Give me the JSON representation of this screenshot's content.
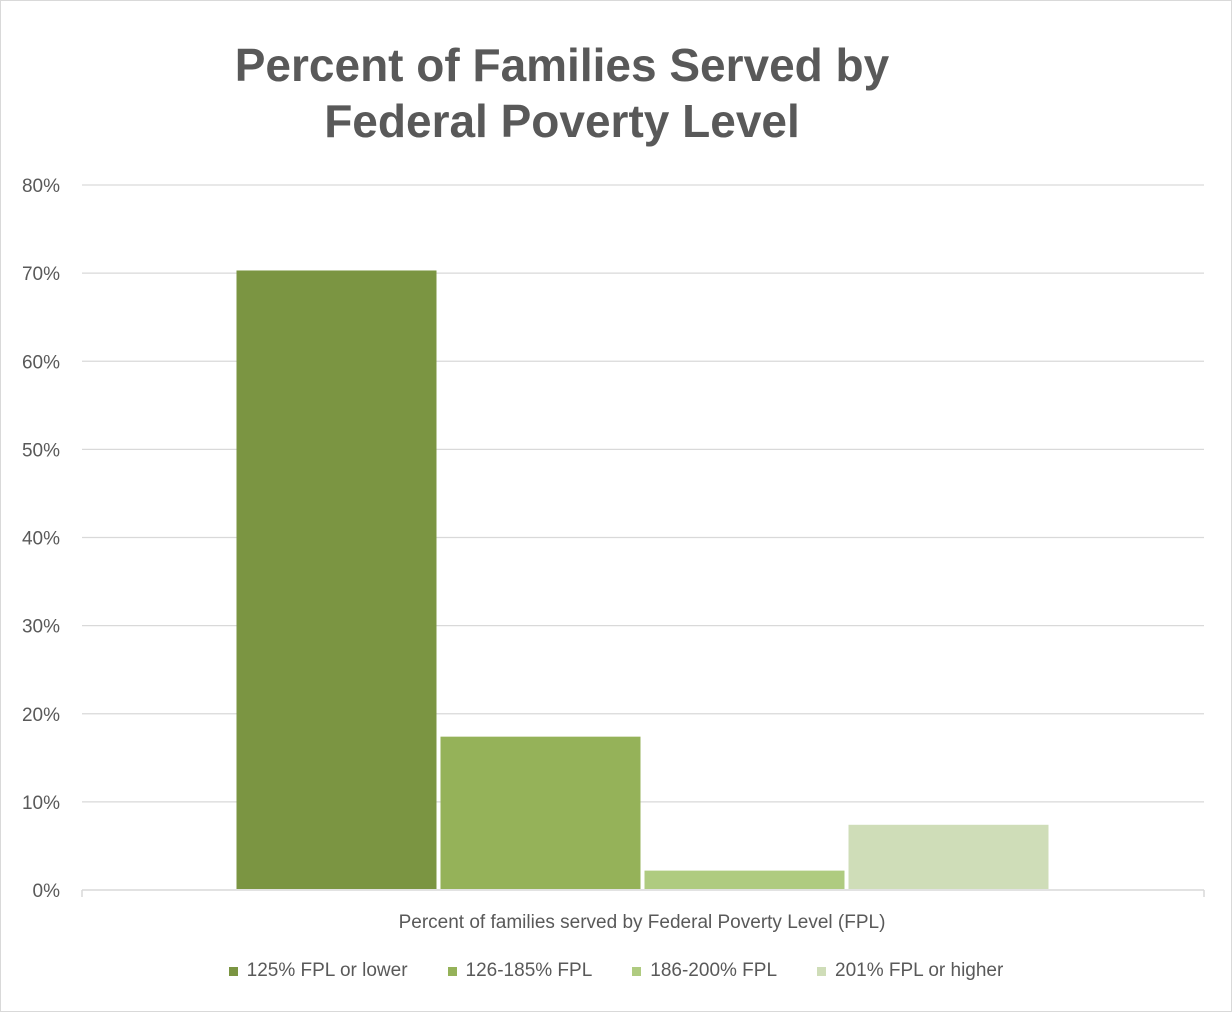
{
  "chart_data": {
    "type": "bar",
    "title": "Percent of Families Served by Federal Poverty Level",
    "xlabel": "Percent of families served by Federal Poverty Level (FPL)",
    "ylabel": "",
    "ylim": [
      0,
      80
    ],
    "yticks": [
      "0%",
      "10%",
      "20%",
      "30%",
      "40%",
      "50%",
      "60%",
      "70%",
      "80%"
    ],
    "ytick_values": [
      0,
      10,
      20,
      30,
      40,
      50,
      60,
      70,
      80
    ],
    "grid": true,
    "legend_position": "bottom",
    "categories": [
      "Percent of families served by Federal Poverty Level (FPL)"
    ],
    "series": [
      {
        "name": "125% FPL or lower",
        "values": [
          70.3
        ],
        "color": "#7b9542"
      },
      {
        "name": "126-185% FPL",
        "values": [
          17.4
        ],
        "color": "#95b259"
      },
      {
        "name": "186-200% FPL",
        "values": [
          2.2
        ],
        "color": "#afcb80"
      },
      {
        "name": "201% FPL or higher",
        "values": [
          7.4
        ],
        "color": "#cfddb8"
      }
    ]
  }
}
